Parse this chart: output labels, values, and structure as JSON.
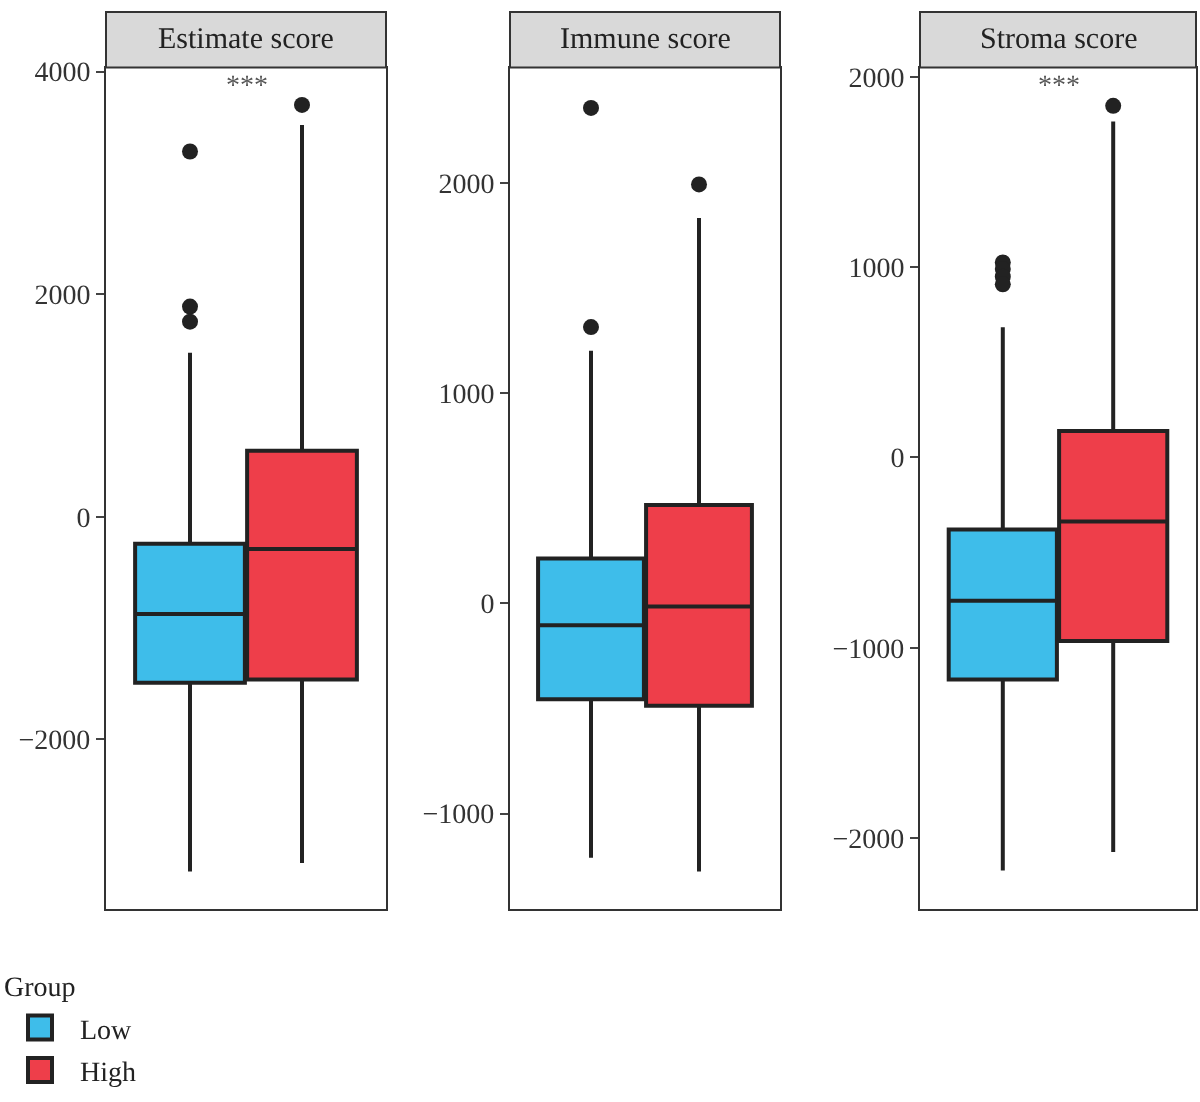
{
  "chart_data": [
    {
      "type": "box",
      "title": "Estimate score",
      "categories": [
        null
      ],
      "ylim": [
        -3527,
        4036
      ],
      "yticks": [
        -2000,
        0,
        2000,
        4000
      ],
      "grid": false,
      "legend": "bottom left",
      "legend_title": "Group",
      "annotations": [
        "***"
      ],
      "series": [
        {
          "name": "Low",
          "color": "#3ebdea",
          "boxes": [
            {
              "low": -3187,
              "q1": -1491,
              "median": -872,
              "q3": -241,
              "high": 1473,
              "outliers": [
                3282,
                1889,
                1753
              ]
            }
          ]
        },
        {
          "name": "High",
          "color": "#ee3e4a",
          "boxes": [
            {
              "low": -3110,
              "q1": -1461,
              "median": -289,
              "q3": 593,
              "high": 3521,
              "outliers": [
                3700
              ]
            }
          ]
        }
      ]
    },
    {
      "type": "box",
      "title": "Immune score",
      "categories": [
        null
      ],
      "ylim": [
        -1456,
        2550
      ],
      "yticks": [
        -1000,
        0,
        1000,
        2000
      ],
      "grid": false,
      "series": [
        {
          "color": "#3ebdea",
          "boxes": [
            {
              "low": -1210,
              "q1": -456,
              "median": -104,
              "q3": 214,
              "high": 1202,
              "outliers": [
                2358,
                1315
              ]
            }
          ]
        },
        {
          "color": "#ee3e4a",
          "boxes": [
            {
              "low": -1276,
              "q1": -487,
              "median": -15,
              "q3": 469,
              "high": 1834,
              "outliers": [
                1994
              ]
            }
          ]
        }
      ]
    },
    {
      "type": "box",
      "title": "Stroma score",
      "categories": [
        null
      ],
      "ylim": [
        -2375,
        2049
      ],
      "yticks": [
        -2000,
        -1000,
        0,
        1000,
        2000
      ],
      "grid": false,
      "annotations": [
        "***"
      ],
      "series": [
        {
          "color": "#3ebdea",
          "boxes": [
            {
              "low": -2170,
              "q1": -1167,
              "median": -753,
              "q3": -378,
              "high": 684,
              "outliers": [
                1025,
                990,
                950,
                910
              ]
            }
          ]
        },
        {
          "color": "#ee3e4a",
          "boxes": [
            {
              "low": -2073,
              "q1": -965,
              "median": -337,
              "q3": 139,
              "high": 1765,
              "outliers": [
                1848
              ]
            }
          ]
        }
      ]
    }
  ]
}
